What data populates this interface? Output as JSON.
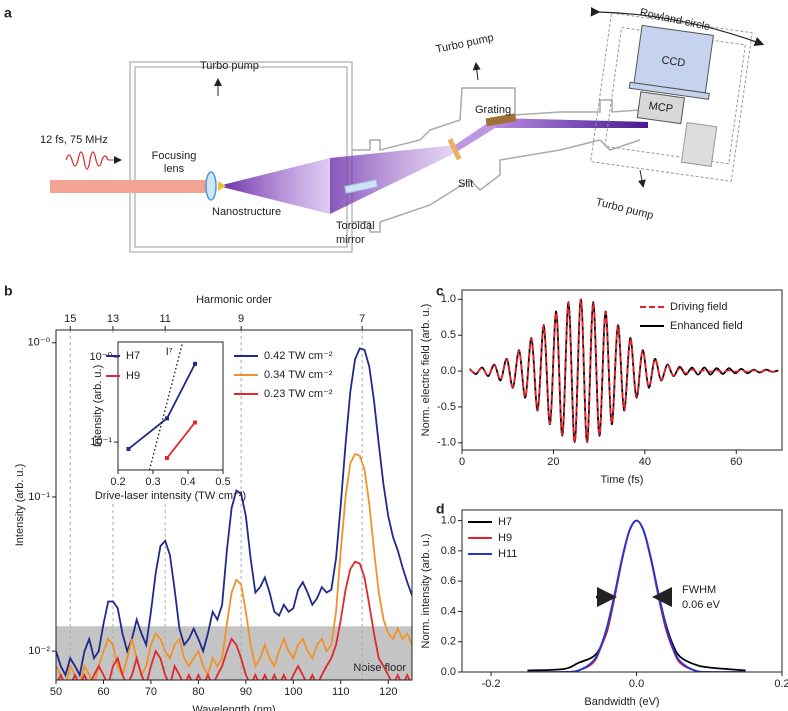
{
  "diagram": {
    "panel": "a",
    "turbo_pumps": [
      "Turbo pump",
      "Turbo pump",
      "Turbo pump"
    ],
    "laser": "12 fs, 75 MHz",
    "focusing_lens": [
      "Focusing",
      "lens"
    ],
    "nanostructure": "Nanostructure",
    "toroidal_mirror": [
      "Toroidal",
      "mirror"
    ],
    "slit": "Slit",
    "grating": "Grating",
    "ccd": "CCD",
    "mcp": "MCP",
    "rowland": "Rowland circle"
  },
  "chart_data": [
    {
      "panel": "b",
      "type": "line",
      "x_label": "Wavelength (nm)",
      "y_label": "Intensity (arb. u.)",
      "top_axis_label": "Harmonic order",
      "harmonic_ticks": [
        {
          "value": 53,
          "label": "15"
        },
        {
          "value": 62,
          "label": "13"
        },
        {
          "value": 73,
          "label": "11"
        },
        {
          "value": 89,
          "label": "9"
        },
        {
          "value": 114.5,
          "label": "7"
        }
      ],
      "x": [
        50,
        51,
        52,
        53,
        54,
        55,
        56,
        57,
        58,
        59,
        60,
        61,
        62,
        63,
        64,
        65,
        66,
        67,
        68,
        69,
        70,
        71,
        72,
        73,
        74,
        75,
        76,
        77,
        78,
        79,
        80,
        81,
        82,
        83,
        84,
        85,
        86,
        87,
        88,
        89,
        90,
        91,
        92,
        93,
        94,
        95,
        96,
        97,
        98,
        99,
        100,
        101,
        102,
        103,
        104,
        105,
        106,
        107,
        108,
        109,
        110,
        111,
        112,
        113,
        114,
        115,
        116,
        117,
        118,
        119,
        120,
        121,
        122,
        123,
        124,
        125
      ],
      "series": [
        {
          "name": "0.42 TW cm⁻²",
          "color": "#1f2a8a",
          "values": [
            0.01,
            0.008,
            0.007,
            0.009,
            0.008,
            0.007,
            0.01,
            0.012,
            0.009,
            0.01,
            0.015,
            0.021,
            0.021,
            0.019,
            0.013,
            0.01,
            0.012,
            0.016,
            0.013,
            0.011,
            0.018,
            0.032,
            0.048,
            0.052,
            0.042,
            0.025,
            0.014,
            0.011,
            0.012,
            0.014,
            0.012,
            0.01,
            0.013,
            0.018,
            0.016,
            0.02,
            0.045,
            0.085,
            0.11,
            0.105,
            0.075,
            0.04,
            0.024,
            0.026,
            0.03,
            0.024,
            0.018,
            0.017,
            0.02,
            0.018,
            0.019,
            0.025,
            0.028,
            0.024,
            0.02,
            0.022,
            0.026,
            0.024,
            0.025,
            0.04,
            0.09,
            0.22,
            0.48,
            0.78,
            0.92,
            0.9,
            0.7,
            0.42,
            0.22,
            0.12,
            0.075,
            0.055,
            0.045,
            0.035,
            0.028,
            0.023
          ]
        },
        {
          "name": "0.34 TW cm⁻²",
          "color": "#f0922a",
          "values": [
            0.008,
            0.007,
            0.006,
            0.008,
            0.007,
            0.006,
            0.008,
            0.007,
            0.006,
            0.008,
            0.01,
            0.012,
            0.011,
            0.008,
            0.007,
            0.009,
            0.012,
            0.009,
            0.007,
            0.008,
            0.011,
            0.013,
            0.012,
            0.01,
            0.009,
            0.011,
            0.012,
            0.009,
            0.008,
            0.009,
            0.01,
            0.008,
            0.007,
            0.009,
            0.008,
            0.009,
            0.015,
            0.024,
            0.029,
            0.027,
            0.018,
            0.011,
            0.008,
            0.009,
            0.011,
            0.009,
            0.008,
            0.01,
            0.012,
            0.01,
            0.009,
            0.011,
            0.012,
            0.01,
            0.009,
            0.011,
            0.012,
            0.01,
            0.011,
            0.018,
            0.045,
            0.1,
            0.165,
            0.19,
            0.185,
            0.15,
            0.09,
            0.045,
            0.024,
            0.016,
            0.013,
            0.012,
            0.014,
            0.012,
            0.013,
            0.011
          ]
        },
        {
          "name": "0.23 TW cm⁻²",
          "color": "#e0282d",
          "values": [
            0.006,
            0.007,
            0.006,
            0.006,
            0.007,
            0.006,
            0.007,
            0.006,
            0.007,
            0.008,
            0.007,
            0.006,
            0.008,
            0.009,
            0.007,
            0.006,
            0.007,
            0.009,
            0.007,
            0.006,
            0.008,
            0.01,
            0.009,
            0.007,
            0.006,
            0.008,
            0.007,
            0.006,
            0.007,
            0.006,
            0.007,
            0.006,
            0.007,
            0.006,
            0.007,
            0.008,
            0.01,
            0.012,
            0.011,
            0.009,
            0.007,
            0.006,
            0.007,
            0.006,
            0.007,
            0.006,
            0.007,
            0.006,
            0.007,
            0.006,
            0.007,
            0.008,
            0.007,
            0.006,
            0.007,
            0.006,
            0.007,
            0.008,
            0.009,
            0.011,
            0.016,
            0.025,
            0.034,
            0.038,
            0.037,
            0.03,
            0.02,
            0.013,
            0.009,
            0.008,
            0.007,
            0.006,
            0.007,
            0.006,
            0.007,
            0.006
          ]
        }
      ],
      "xlim": [
        50,
        125
      ],
      "xticks": [
        50,
        60,
        70,
        80,
        90,
        100,
        110,
        120
      ],
      "ylim": [
        0.0065,
        1.21
      ],
      "log_y": true,
      "yticks": [
        {
          "value": 0.01,
          "label": "10⁻²"
        },
        {
          "value": 0.1,
          "label": "10⁻¹"
        },
        {
          "value": 1,
          "label": "10⁻⁰"
        }
      ],
      "noise_floor": 0.0145,
      "noise_floor_label": "Noise floor",
      "legend": "upper center"
    },
    {
      "panel": "b-inset",
      "type": "line",
      "markers": true,
      "x_label": "Drive-laser intensity (TW cm⁻²)",
      "y_label": "Intensity (arb. u.)",
      "series": [
        {
          "name": "H7",
          "color": "#1f2a8a",
          "x": [
            0.23,
            0.34,
            0.42
          ],
          "values": [
            0.083,
            0.19,
            0.83
          ]
        },
        {
          "name": "H9",
          "color": "#e0282d",
          "x": [
            0.34,
            0.42
          ],
          "values": [
            0.065,
            0.17
          ]
        },
        {
          "name": "I⁷",
          "color": "#000000",
          "dash": "dotted",
          "x": [
            0.29,
            0.385
          ],
          "values": [
            0.047,
            1.5
          ]
        }
      ],
      "xlim": [
        0.2,
        0.5
      ],
      "xticks": [
        0.2,
        0.3,
        0.4,
        0.5
      ],
      "ylim": [
        0.047,
        1.5
      ],
      "log_y": true,
      "yticks": [
        {
          "value": 0.1,
          "label": "10⁻¹"
        },
        {
          "value": 1,
          "label": "10⁻⁰"
        }
      ],
      "legend": "upper left"
    },
    {
      "panel": "c",
      "type": "line",
      "smooth": true,
      "x_label": "Time (fs)",
      "y_label": "Norm. electric field (arb. u.)",
      "x": [
        1.7,
        3.05,
        4.4,
        5.75,
        7.1,
        8.45,
        9.8,
        11.15,
        12.5,
        13.85,
        15.2,
        16.55,
        17.9,
        19.25,
        20.6,
        21.95,
        23.3,
        24.65,
        26.0,
        27.35,
        28.7,
        30.05,
        31.4,
        32.75,
        34.1,
        35.45,
        36.8,
        38.15,
        39.5,
        40.85,
        42.2,
        43.55,
        44.9,
        46.25,
        47.6,
        48.95,
        50.3,
        51.65,
        53.0,
        54.35,
        55.7,
        57.05,
        58.4,
        59.75,
        61.1,
        62.45,
        63.8,
        65.15,
        66.5,
        67.85,
        69.2
      ],
      "series": [
        {
          "name": "Enhanced field",
          "color": "#000000",
          "values": [
            0.03,
            -0.04,
            0.05,
            -0.07,
            0.09,
            -0.13,
            0.17,
            -0.23,
            0.29,
            -0.37,
            0.46,
            -0.55,
            0.64,
            -0.74,
            0.83,
            -0.9,
            0.96,
            -0.99,
            1.0,
            -0.99,
            0.96,
            -0.9,
            0.83,
            -0.74,
            0.64,
            -0.55,
            0.46,
            -0.37,
            0.29,
            -0.23,
            0.17,
            -0.13,
            0.09,
            -0.07,
            0.06,
            -0.05,
            0.05,
            -0.05,
            0.05,
            -0.05,
            0.04,
            -0.04,
            0.04,
            -0.03,
            0.03,
            -0.03,
            0.02,
            -0.02,
            0.02,
            -0.01,
            0.01
          ]
        },
        {
          "name": "Driving field",
          "color": "#e8202a",
          "dash": "dashed",
          "values": [
            0.02,
            -0.03,
            0.04,
            -0.06,
            0.08,
            -0.12,
            0.16,
            -0.22,
            0.28,
            -0.36,
            0.45,
            -0.54,
            0.63,
            -0.73,
            0.82,
            -0.89,
            0.95,
            -0.99,
            1.0,
            -0.99,
            0.95,
            -0.89,
            0.82,
            -0.73,
            0.63,
            -0.54,
            0.45,
            -0.36,
            0.28,
            -0.22,
            0.16,
            -0.12,
            0.08,
            -0.06,
            0.04,
            -0.03,
            0.02,
            -0.01,
            0.01,
            -0.01,
            0.01,
            -0.01,
            0.01,
            -0.01,
            0.01,
            -0.01,
            0.01,
            -0.01,
            0.01,
            -0.01,
            0.01
          ]
        }
      ],
      "legend_order": [
        1,
        0
      ],
      "xlim": [
        0,
        70
      ],
      "xticks": [
        0,
        20,
        40,
        60
      ],
      "ylim": [
        -1.1,
        1.13
      ],
      "yticks": [
        {
          "value": -1,
          "label": "-1.0"
        },
        -0.5,
        {
          "value": 0,
          "label": "0.0"
        },
        0.5,
        {
          "value": 1,
          "label": "1.0"
        }
      ],
      "legend": "upper right"
    },
    {
      "panel": "d",
      "type": "line",
      "smooth": true,
      "x_label": "Bandwidth (eV)",
      "y_label": "Norm. intensity (arb. u.)",
      "x": [
        -0.15,
        -0.1,
        -0.08,
        -0.06,
        -0.05,
        -0.04,
        -0.03,
        -0.02,
        -0.01,
        0,
        0.01,
        0.02,
        0.03,
        0.04,
        0.05,
        0.06,
        0.08,
        0.1,
        0.15
      ],
      "series": [
        {
          "name": "H7",
          "color": "#000000",
          "values": [
            0.01,
            0.02,
            0.06,
            0.1,
            0.16,
            0.28,
            0.5,
            0.74,
            0.93,
            1.0,
            0.93,
            0.74,
            0.52,
            0.32,
            0.18,
            0.1,
            0.05,
            0.03,
            0.01
          ]
        },
        {
          "name": "H9",
          "color": "#e8202a",
          "values": [
            0,
            0,
            0.01,
            0.06,
            0.15,
            0.29,
            0.5,
            0.74,
            0.93,
            1.0,
            0.93,
            0.74,
            0.5,
            0.29,
            0.15,
            0.06,
            0.01,
            0,
            0
          ]
        },
        {
          "name": "H11",
          "color": "#2038d8",
          "values": [
            0,
            0,
            0.01,
            0.07,
            0.16,
            0.31,
            0.52,
            0.75,
            0.93,
            1.0,
            0.93,
            0.75,
            0.52,
            0.31,
            0.16,
            0.07,
            0.01,
            0,
            0
          ]
        }
      ],
      "xlim": [
        -0.24,
        0.2
      ],
      "xticks": [
        -0.2,
        {
          "value": 0,
          "label": "0.0"
        },
        0.2
      ],
      "ylim": [
        0,
        1.07
      ],
      "yticks": [
        {
          "value": 0,
          "label": "0.0"
        },
        0.2,
        0.4,
        0.6,
        0.8,
        {
          "value": 1,
          "label": "1.0"
        }
      ],
      "annotation": [
        "FWHM",
        "0.06 eV"
      ],
      "legend": "upper left"
    }
  ]
}
